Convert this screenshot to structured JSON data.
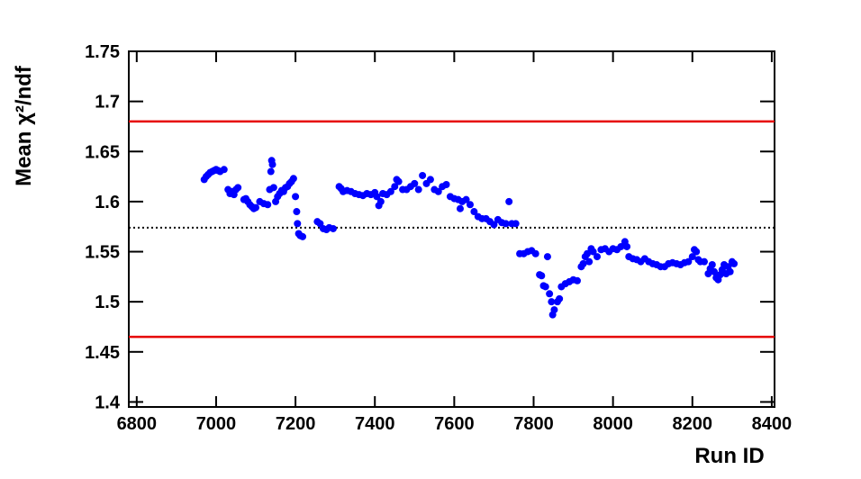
{
  "chart_data": {
    "type": "scatter",
    "x_label": "Run ID",
    "y_label": "Mean  χ²/ndf",
    "xlim": [
      6780,
      8407
    ],
    "ylim": [
      1.395,
      1.75
    ],
    "xticks": [
      6800,
      7000,
      7200,
      7400,
      7600,
      7800,
      8000,
      8200,
      8400
    ],
    "yticks": [
      1.4,
      1.45,
      1.5,
      1.55,
      1.6,
      1.65,
      1.7,
      1.75
    ],
    "reference_lines": [
      {
        "value": 1.68,
        "color": "#e60000",
        "style": "solid"
      },
      {
        "value": 1.465,
        "color": "#e60000",
        "style": "solid"
      },
      {
        "value": 1.574,
        "color": "#000000",
        "style": "dotted"
      }
    ],
    "series": [
      {
        "color": "#0000ff",
        "x": [
          6970,
          6975,
          6980,
          6985,
          6990,
          6995,
          7000,
          7005,
          7010,
          7020,
          7030,
          7035,
          7040,
          7045,
          7050,
          7055,
          7070,
          7075,
          7080,
          7085,
          7090,
          7095,
          7100,
          7110,
          7120,
          7130,
          7135,
          7138,
          7140,
          7142,
          7145,
          7150,
          7155,
          7160,
          7165,
          7170,
          7175,
          7180,
          7185,
          7190,
          7195,
          7200,
          7203,
          7205,
          7208,
          7212,
          7218,
          7255,
          7262,
          7270,
          7278,
          7285,
          7295,
          7310,
          7315,
          7320,
          7330,
          7340,
          7350,
          7360,
          7370,
          7380,
          7390,
          7400,
          7405,
          7410,
          7415,
          7420,
          7430,
          7440,
          7450,
          7455,
          7460,
          7470,
          7480,
          7490,
          7500,
          7510,
          7520,
          7530,
          7540,
          7550,
          7560,
          7570,
          7580,
          7590,
          7600,
          7610,
          7615,
          7620,
          7630,
          7640,
          7650,
          7660,
          7670,
          7680,
          7690,
          7700,
          7710,
          7720,
          7730,
          7738,
          7745,
          7755,
          7765,
          7775,
          7785,
          7795,
          7805,
          7815,
          7820,
          7825,
          7830,
          7835,
          7840,
          7845,
          7848,
          7852,
          7860,
          7865,
          7870,
          7880,
          7890,
          7900,
          7910,
          7920,
          7925,
          7930,
          7935,
          7940,
          7945,
          7950,
          7960,
          7970,
          7980,
          7990,
          8000,
          8010,
          8020,
          8030,
          8035,
          8040,
          8050,
          8060,
          8070,
          8080,
          8090,
          8100,
          8110,
          8120,
          8130,
          8140,
          8150,
          8160,
          8170,
          8180,
          8190,
          8200,
          8205,
          8210,
          8215,
          8220,
          8230,
          8240,
          8245,
          8250,
          8255,
          8260,
          8265,
          8270,
          8275,
          8280,
          8285,
          8290,
          8295,
          8300,
          8305
        ],
        "values": [
          1.622,
          1.625,
          1.627,
          1.629,
          1.63,
          1.631,
          1.632,
          1.631,
          1.63,
          1.632,
          1.612,
          1.608,
          1.61,
          1.607,
          1.612,
          1.614,
          1.602,
          1.603,
          1.6,
          1.597,
          1.595,
          1.593,
          1.594,
          1.6,
          1.598,
          1.597,
          1.612,
          1.63,
          1.641,
          1.637,
          1.614,
          1.6,
          1.605,
          1.608,
          1.611,
          1.61,
          1.614,
          1.615,
          1.618,
          1.62,
          1.623,
          1.605,
          1.59,
          1.578,
          1.568,
          1.566,
          1.565,
          1.58,
          1.578,
          1.573,
          1.572,
          1.574,
          1.573,
          1.615,
          1.613,
          1.61,
          1.611,
          1.61,
          1.608,
          1.607,
          1.606,
          1.608,
          1.607,
          1.609,
          1.605,
          1.596,
          1.6,
          1.608,
          1.607,
          1.61,
          1.615,
          1.622,
          1.62,
          1.612,
          1.612,
          1.615,
          1.618,
          1.612,
          1.626,
          1.618,
          1.622,
          1.612,
          1.61,
          1.615,
          1.617,
          1.605,
          1.603,
          1.602,
          1.593,
          1.6,
          1.602,
          1.597,
          1.59,
          1.585,
          1.583,
          1.583,
          1.58,
          1.577,
          1.582,
          1.579,
          1.578,
          1.6,
          1.578,
          1.578,
          1.548,
          1.548,
          1.55,
          1.551,
          1.548,
          1.527,
          1.526,
          1.516,
          1.515,
          1.545,
          1.508,
          1.5,
          1.487,
          1.492,
          1.5,
          1.503,
          1.515,
          1.518,
          1.52,
          1.522,
          1.521,
          1.535,
          1.538,
          1.545,
          1.548,
          1.54,
          1.553,
          1.55,
          1.545,
          1.552,
          1.553,
          1.55,
          1.553,
          1.552,
          1.555,
          1.56,
          1.555,
          1.545,
          1.543,
          1.542,
          1.54,
          1.543,
          1.54,
          1.538,
          1.537,
          1.535,
          1.535,
          1.538,
          1.539,
          1.538,
          1.537,
          1.539,
          1.54,
          1.545,
          1.552,
          1.55,
          1.542,
          1.54,
          1.54,
          1.528,
          1.533,
          1.537,
          1.53,
          1.524,
          1.522,
          1.527,
          1.532,
          1.537,
          1.528,
          1.535,
          1.53,
          1.54,
          1.538
        ]
      }
    ]
  }
}
